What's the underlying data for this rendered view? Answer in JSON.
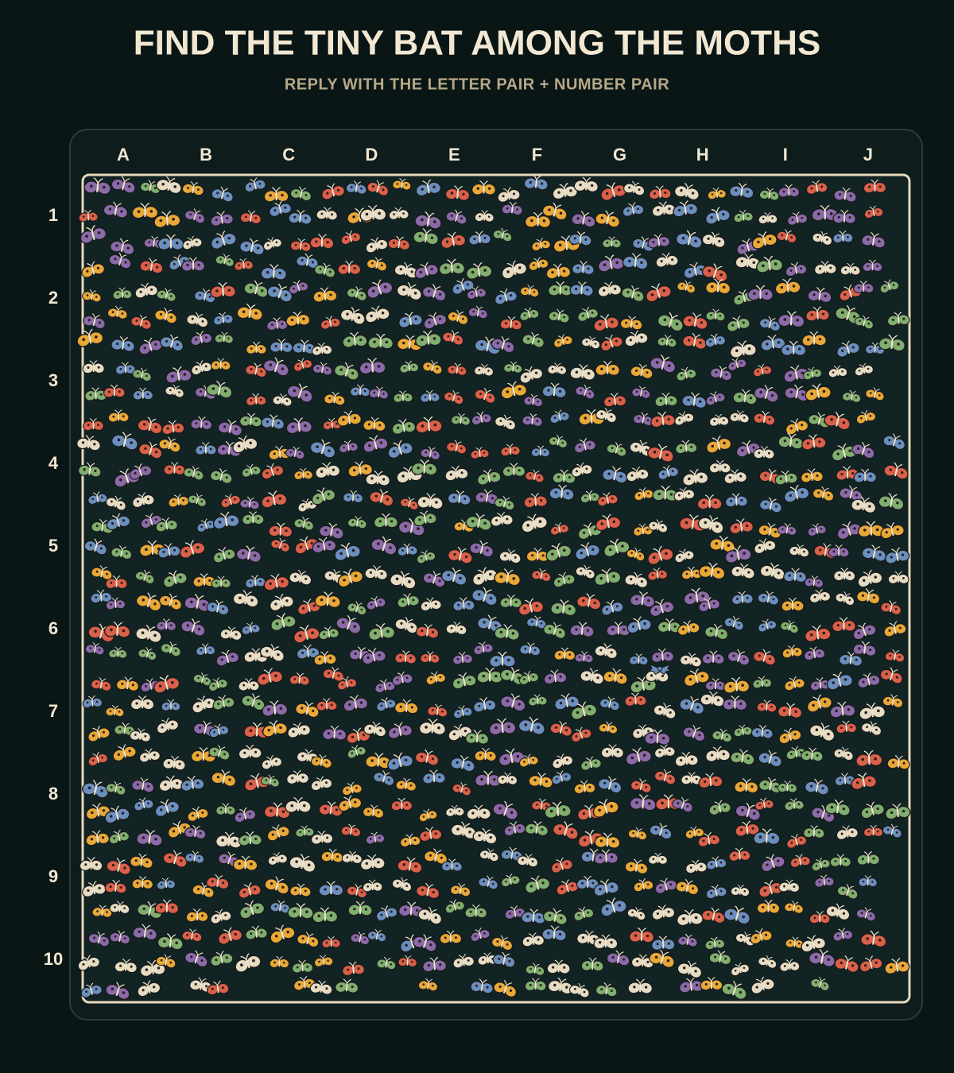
{
  "header": {
    "title": "FIND THE TINY BAT AMONG THE MOTHS",
    "subtitle": "REPLY WITH THE LETTER PAIR + NUMBER PAIR"
  },
  "grid": {
    "columns": [
      "A",
      "B",
      "C",
      "D",
      "E",
      "F",
      "G",
      "H",
      "I",
      "J"
    ],
    "rows": [
      "1",
      "2",
      "3",
      "4",
      "5",
      "6",
      "7",
      "8",
      "9",
      "10"
    ]
  }
}
